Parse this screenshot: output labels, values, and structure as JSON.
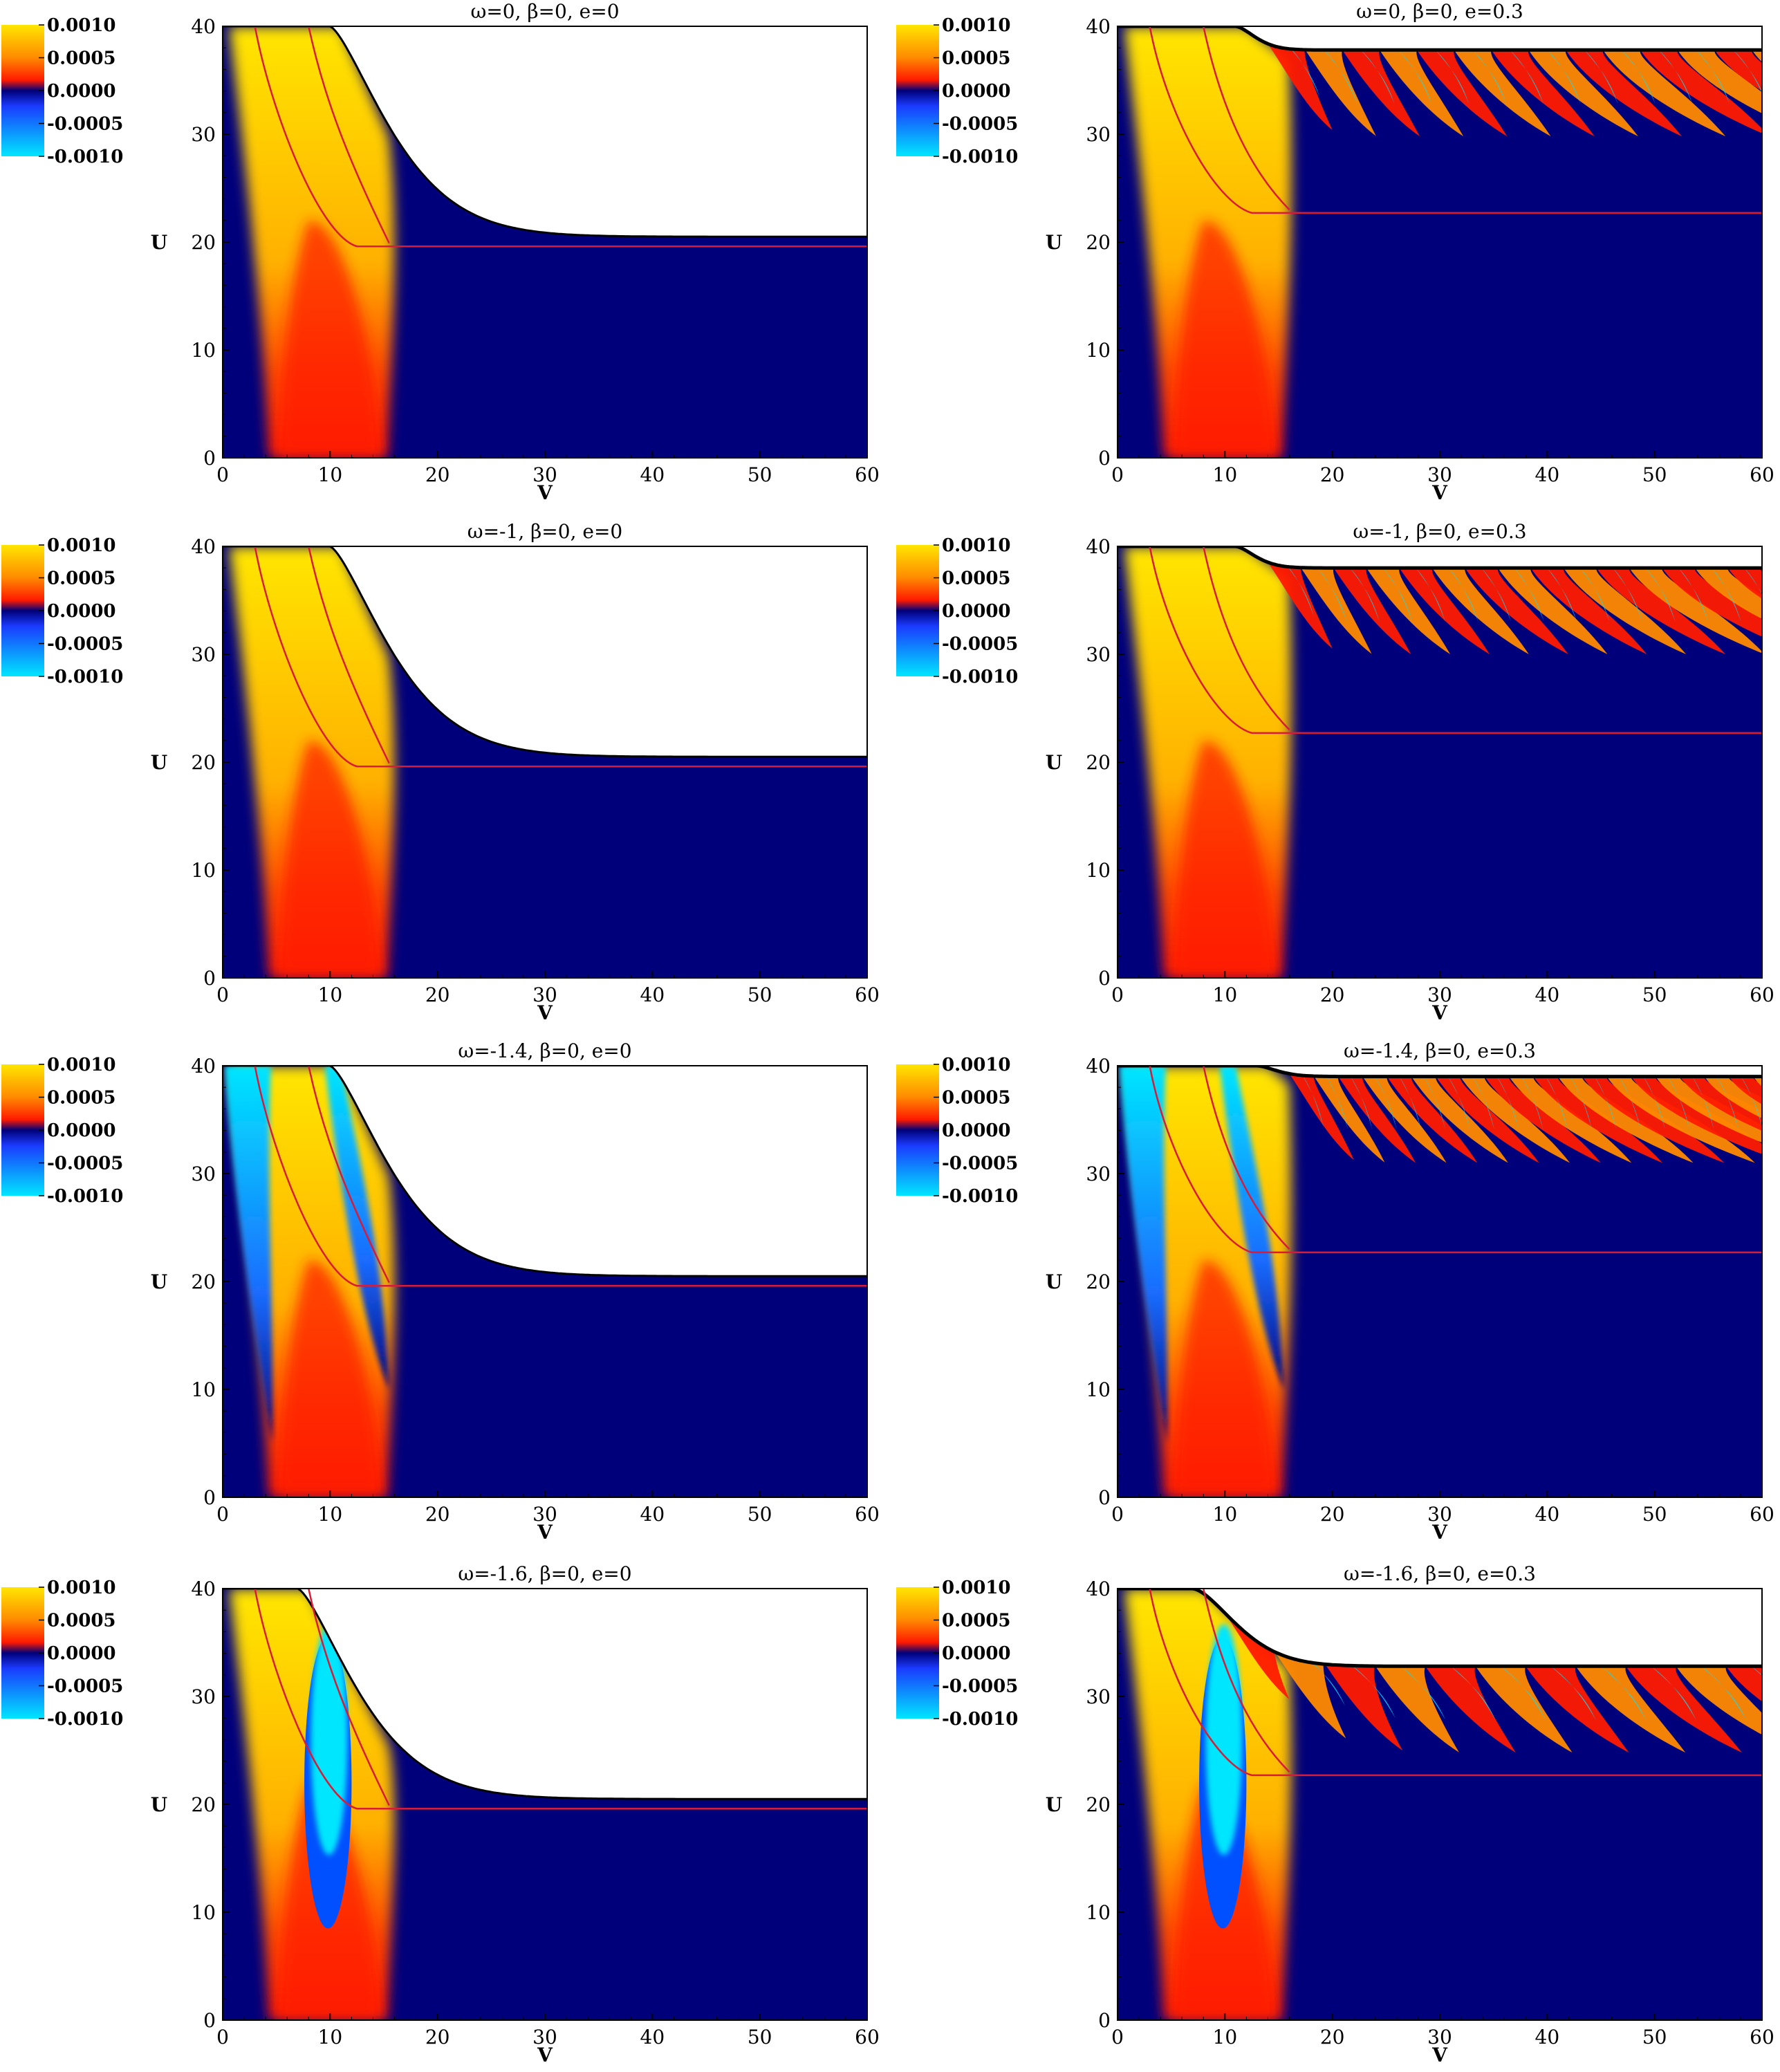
{
  "figure": {
    "grid": {
      "rows": 4,
      "columns": 2
    },
    "colors": {
      "deep_blue": "#00007a",
      "mid_blue": "#1a3cff",
      "cyan": "#00e6ff",
      "red": "#ff1a00",
      "orange": "#ff8a00",
      "yellow": "#ffe600",
      "contour": "#d81b36",
      "boundary": "#000000"
    }
  },
  "chart_data": [
    {
      "type": "heatmap",
      "title": "ω=0,   β=0,   e=0",
      "xlabel": "V",
      "ylabel": "U",
      "xlim": [
        0,
        60
      ],
      "ylim": [
        0,
        40
      ],
      "xticks": [
        "0",
        "10",
        "20",
        "30",
        "40",
        "50",
        "60"
      ],
      "yticks": [
        "0",
        "10",
        "20",
        "30",
        "40"
      ],
      "colorbar": {
        "labels": [
          "0.0010",
          "0.0005",
          "0.0000",
          "-0.0005",
          "-0.0010"
        ],
        "range": [
          -0.001,
          0.001
        ]
      },
      "params": {
        "omega": 0,
        "beta": 0,
        "e": 0
      },
      "shape": {
        "family": "uncharged",
        "U_asymptote": 20.5,
        "horizon_U": 19.6,
        "oscillations": 0,
        "cyan_region": "none"
      },
      "left_boundary_end_v": 10
    },
    {
      "type": "heatmap",
      "title": "ω=0,   β=0,   e=0.3",
      "xlabel": "V",
      "ylabel": "U",
      "xlim": [
        0,
        60
      ],
      "ylim": [
        0,
        40
      ],
      "xticks": [
        "0",
        "10",
        "20",
        "30",
        "40",
        "50",
        "60"
      ],
      "yticks": [
        "0",
        "10",
        "20",
        "30",
        "40"
      ],
      "colorbar": {
        "labels": [
          "0.0010",
          "0.0005",
          "0.0000",
          "-0.0005",
          "-0.0010"
        ],
        "range": [
          -0.001,
          0.001
        ]
      },
      "params": {
        "omega": 0,
        "beta": 0,
        "e": 0.3
      },
      "shape": {
        "family": "charged",
        "U_asymptote": 37.8,
        "horizon_U": 22.7,
        "oscillations": 15,
        "cyan_region": "none"
      },
      "left_boundary_end_v": 11
    },
    {
      "type": "heatmap",
      "title": "ω=-1,   β=0,   e=0",
      "xlabel": "V",
      "ylabel": "U",
      "xlim": [
        0,
        60
      ],
      "ylim": [
        0,
        40
      ],
      "xticks": [
        "0",
        "10",
        "20",
        "30",
        "40",
        "50",
        "60"
      ],
      "yticks": [
        "0",
        "10",
        "20",
        "30",
        "40"
      ],
      "colorbar": {
        "labels": [
          "0.0010",
          "0.0005",
          "0.0000",
          "-0.0005",
          "-0.0010"
        ],
        "range": [
          -0.001,
          0.001
        ]
      },
      "params": {
        "omega": -1,
        "beta": 0,
        "e": 0
      },
      "shape": {
        "family": "uncharged",
        "U_asymptote": 20.5,
        "horizon_U": 19.6,
        "oscillations": 0,
        "cyan_region": "none"
      },
      "left_boundary_end_v": 10
    },
    {
      "type": "heatmap",
      "title": "ω=-1,   β=0,   e=0.3",
      "xlabel": "V",
      "ylabel": "U",
      "xlim": [
        0,
        60
      ],
      "ylim": [
        0,
        40
      ],
      "xticks": [
        "0",
        "10",
        "20",
        "30",
        "40",
        "50",
        "60"
      ],
      "yticks": [
        "0",
        "10",
        "20",
        "30",
        "40"
      ],
      "colorbar": {
        "labels": [
          "0.0010",
          "0.0005",
          "0.0000",
          "-0.0005",
          "-0.0010"
        ],
        "range": [
          -0.001,
          0.001
        ]
      },
      "params": {
        "omega": -1,
        "beta": 0,
        "e": 0.3
      },
      "shape": {
        "family": "charged",
        "U_asymptote": 38,
        "horizon_U": 22.7,
        "oscillations": 17,
        "cyan_region": "none"
      },
      "left_boundary_end_v": 11
    },
    {
      "type": "heatmap",
      "title": "ω=-1.4,   β=0,   e=0",
      "xlabel": "V",
      "ylabel": "U",
      "xlim": [
        0,
        60
      ],
      "ylim": [
        0,
        40
      ],
      "xticks": [
        "0",
        "10",
        "20",
        "30",
        "40",
        "50",
        "60"
      ],
      "yticks": [
        "0",
        "10",
        "20",
        "30",
        "40"
      ],
      "colorbar": {
        "labels": [
          "0.0010",
          "0.0005",
          "0.0000",
          "-0.0005",
          "-0.0010"
        ],
        "range": [
          -0.001,
          0.001
        ]
      },
      "params": {
        "omega": -1.4,
        "beta": 0,
        "e": 0
      },
      "shape": {
        "family": "uncharged",
        "U_asymptote": 20.5,
        "horizon_U": 19.6,
        "oscillations": 0,
        "cyan_region": "band"
      },
      "left_boundary_end_v": 10
    },
    {
      "type": "heatmap",
      "title": "ω=-1.4,   β=0,   e=0.3",
      "xlabel": "V",
      "ylabel": "U",
      "xlim": [
        0,
        60
      ],
      "ylim": [
        0,
        40
      ],
      "xticks": [
        "0",
        "10",
        "20",
        "30",
        "40",
        "50",
        "60"
      ],
      "yticks": [
        "0",
        "10",
        "20",
        "30",
        "40"
      ],
      "colorbar": {
        "labels": [
          "0.0010",
          "0.0005",
          "0.0000",
          "-0.0005",
          "-0.0010"
        ],
        "range": [
          -0.001,
          0.001
        ]
      },
      "params": {
        "omega": -1.4,
        "beta": 0,
        "e": 0.3
      },
      "shape": {
        "family": "charged",
        "U_asymptote": 39,
        "horizon_U": 22.7,
        "oscillations": 22,
        "cyan_region": "band"
      },
      "left_boundary_end_v": 13
    },
    {
      "type": "heatmap",
      "title": "ω=-1.6,   β=0,   e=0",
      "xlabel": "V",
      "ylabel": "U",
      "xlim": [
        0,
        60
      ],
      "ylim": [
        0,
        40
      ],
      "xticks": [
        "0",
        "10",
        "20",
        "30",
        "40",
        "50",
        "60"
      ],
      "yticks": [
        "0",
        "10",
        "20",
        "30",
        "40"
      ],
      "colorbar": {
        "labels": [
          "0.0010",
          "0.0005",
          "0.0000",
          "-0.0005",
          "-0.0010"
        ],
        "range": [
          -0.001,
          0.001
        ]
      },
      "params": {
        "omega": -1.6,
        "beta": 0,
        "e": 0
      },
      "shape": {
        "family": "uncharged",
        "U_asymptote": 20.5,
        "horizon_U": 19.6,
        "oscillations": 0,
        "cyan_region": "bubble"
      },
      "left_boundary_end_v": 7
    },
    {
      "type": "heatmap",
      "title": "ω=-1.6,   β=0,   e=0.3",
      "xlabel": "V",
      "ylabel": "U",
      "xlim": [
        0,
        60
      ],
      "ylim": [
        0,
        40
      ],
      "xticks": [
        "0",
        "10",
        "20",
        "30",
        "40",
        "50",
        "60"
      ],
      "yticks": [
        "0",
        "10",
        "20",
        "30",
        "40"
      ],
      "colorbar": {
        "labels": [
          "0.0010",
          "0.0005",
          "0.0000",
          "-0.0005",
          "-0.0010"
        ],
        "range": [
          -0.001,
          0.001
        ]
      },
      "params": {
        "omega": -1.6,
        "beta": 0,
        "e": 0.3
      },
      "shape": {
        "family": "charged",
        "U_asymptote": 32.8,
        "horizon_U": 22.7,
        "oscillations": 12,
        "cyan_region": "bubble"
      },
      "left_boundary_end_v": 7
    }
  ]
}
